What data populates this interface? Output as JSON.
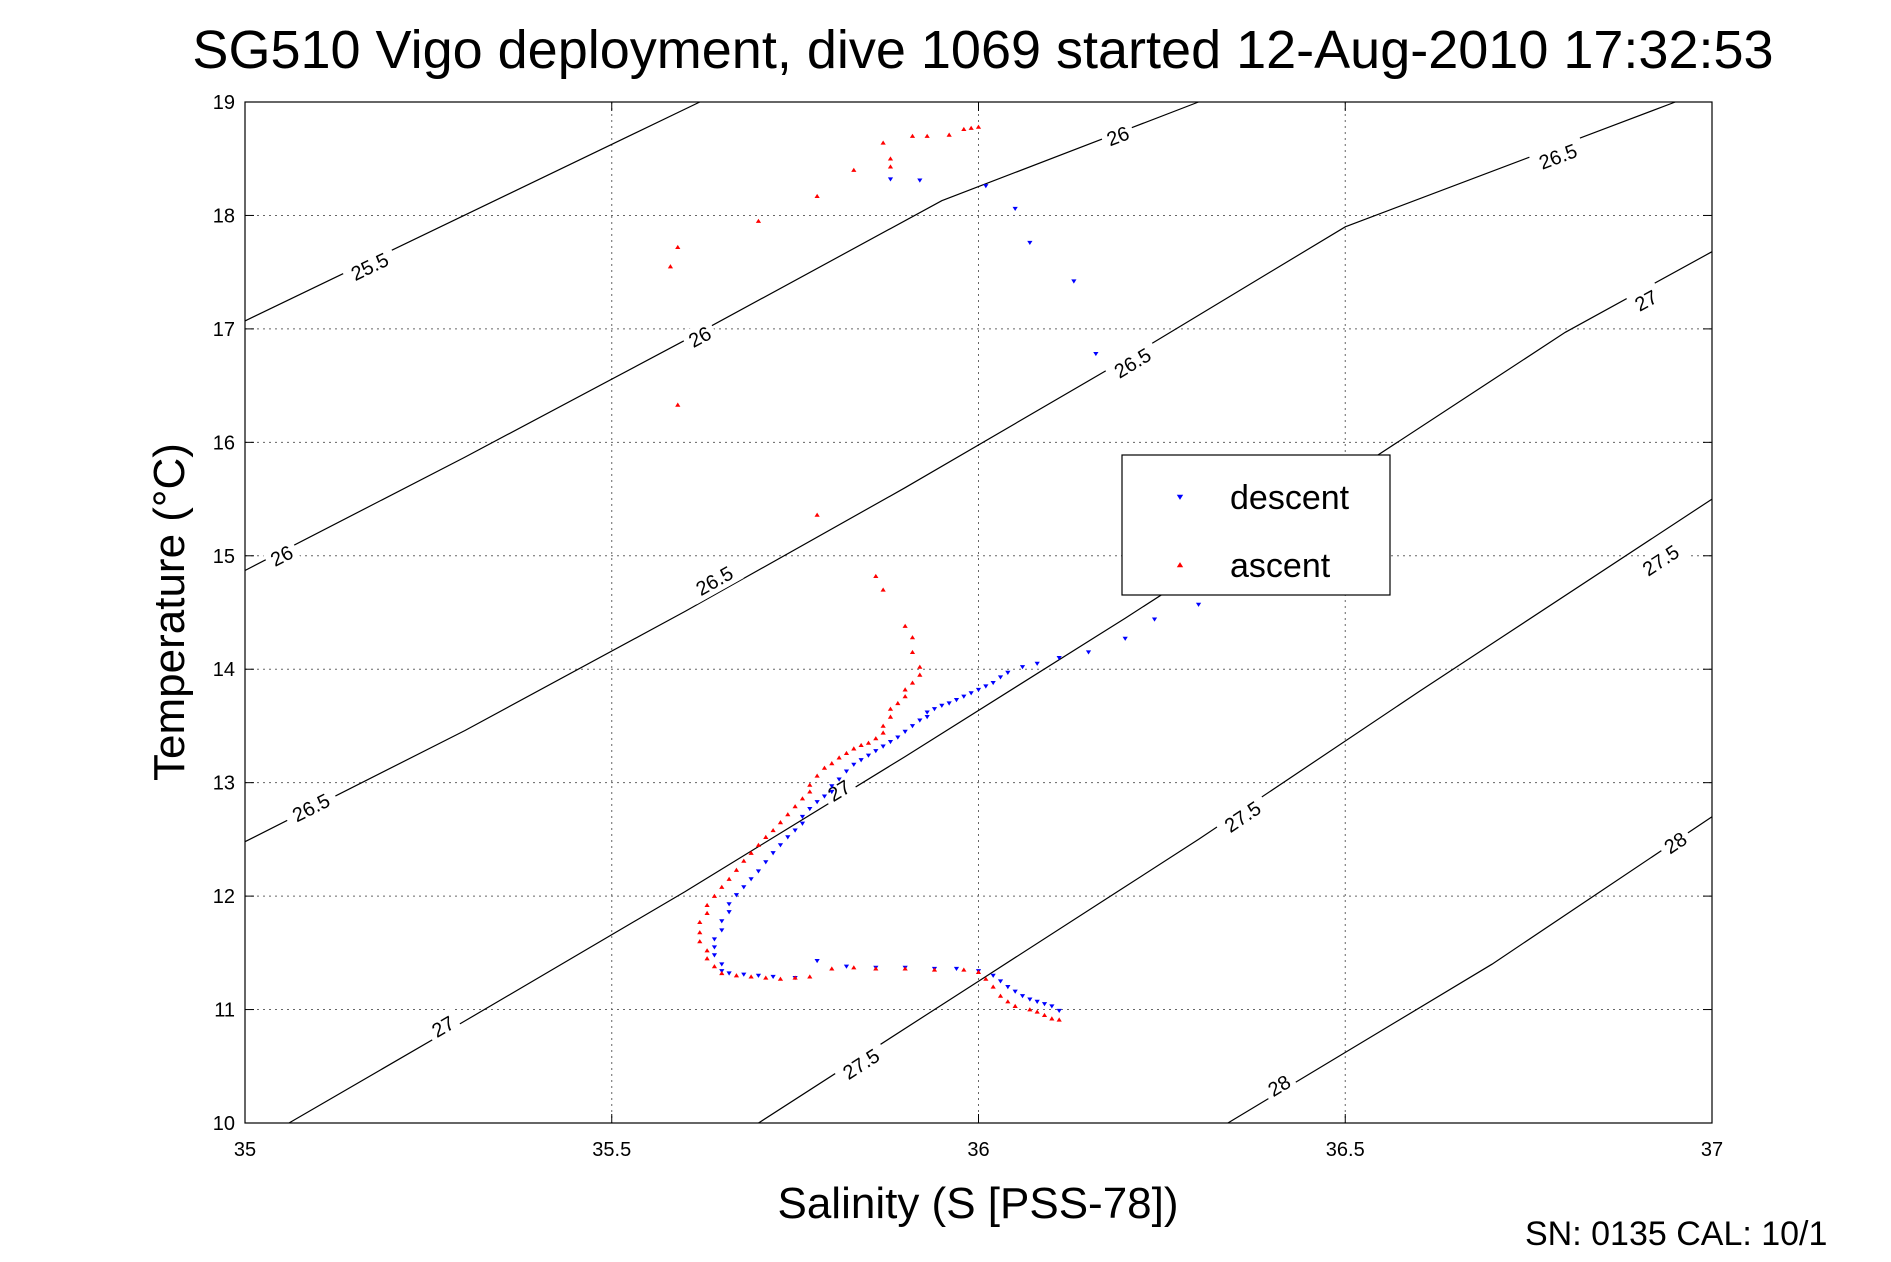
{
  "chart_data": {
    "type": "scatter",
    "title": "SG510 Vigo deployment, dive 1069 started 12-Aug-2010 17:32:53",
    "xlabel": "Salinity (S [PSS-78])",
    "ylabel": "Temperature (°C)",
    "xlim": [
      35,
      37
    ],
    "ylim": [
      10,
      19
    ],
    "x_ticks": [
      "35",
      "35.5",
      "36",
      "36.5",
      "37"
    ],
    "y_ticks": [
      "10",
      "11",
      "12",
      "13",
      "14",
      "15",
      "16",
      "17",
      "18",
      "19"
    ],
    "grid": true,
    "legend_position": "right",
    "footer": "SN: 0135  CAL: 10/1",
    "contours": [
      {
        "sigma": 25.5,
        "points": [
          [
            35,
            17.07
          ],
          [
            35.62,
            19
          ]
        ],
        "labels": [
          [
            35.17,
            17.55,
            "25.5"
          ]
        ]
      },
      {
        "sigma": 26.0,
        "points": [
          [
            35,
            14.87
          ],
          [
            35.3,
            15.87
          ],
          [
            35.6,
            16.9
          ],
          [
            35.95,
            18.13
          ],
          [
            36.3,
            19
          ]
        ],
        "labels": [
          [
            35.05,
            15.0,
            "26"
          ],
          [
            35.62,
            16.93,
            "26"
          ],
          [
            36.19,
            18.7,
            "26"
          ]
        ]
      },
      {
        "sigma": 26.5,
        "points": [
          [
            35,
            12.48
          ],
          [
            35.3,
            13.46
          ],
          [
            35.6,
            14.51
          ],
          [
            35.9,
            15.6
          ],
          [
            36.2,
            16.73
          ],
          [
            36.5,
            17.9
          ],
          [
            36.95,
            19
          ]
        ],
        "labels": [
          [
            35.09,
            12.78,
            "26.5"
          ],
          [
            35.64,
            14.78,
            "26.5"
          ],
          [
            36.21,
            16.7,
            "26.5"
          ],
          [
            36.79,
            18.52,
            "26.5"
          ]
        ]
      },
      {
        "sigma": 27.0,
        "points": [
          [
            35.06,
            10
          ],
          [
            35.3,
            10.9
          ],
          [
            35.6,
            12.04
          ],
          [
            35.9,
            13.23
          ],
          [
            36.2,
            14.45
          ],
          [
            36.5,
            15.7
          ],
          [
            36.8,
            16.97
          ],
          [
            37,
            17.68
          ]
        ],
        "labels": [
          [
            35.27,
            10.85,
            "27"
          ],
          [
            35.81,
            12.93,
            "27"
          ],
          [
            36.91,
            17.25,
            "27"
          ]
        ]
      },
      {
        "sigma": 27.5,
        "points": [
          [
            35.7,
            10
          ],
          [
            36.0,
            11.25
          ],
          [
            36.3,
            12.5
          ],
          [
            36.6,
            13.8
          ],
          [
            37,
            15.5
          ]
        ],
        "labels": [
          [
            35.84,
            10.52,
            "27.5"
          ],
          [
            36.36,
            12.7,
            "27.5"
          ],
          [
            36.93,
            14.96,
            "27.5"
          ]
        ]
      },
      {
        "sigma": 28.0,
        "points": [
          [
            36.34,
            10
          ],
          [
            36.7,
            11.4
          ],
          [
            37,
            12.7
          ]
        ],
        "labels": [
          [
            36.41,
            10.33,
            "28"
          ],
          [
            36.95,
            12.47,
            "28"
          ]
        ]
      }
    ],
    "series": [
      {
        "name": "descent",
        "color": "#0000ff",
        "marker": "triangle-down",
        "points": [
          [
            35.88,
            18.32
          ],
          [
            35.92,
            18.31
          ],
          [
            36.01,
            18.26
          ],
          [
            36.05,
            18.06
          ],
          [
            36.07,
            17.76
          ],
          [
            36.13,
            17.42
          ],
          [
            36.16,
            16.78
          ],
          [
            36.3,
            14.57
          ],
          [
            36.24,
            14.44
          ],
          [
            36.2,
            14.27
          ],
          [
            36.15,
            14.15
          ],
          [
            36.11,
            14.1
          ],
          [
            36.08,
            14.05
          ],
          [
            36.06,
            14.02
          ],
          [
            36.04,
            13.97
          ],
          [
            36.03,
            13.93
          ],
          [
            36.02,
            13.88
          ],
          [
            36.01,
            13.85
          ],
          [
            36.0,
            13.82
          ],
          [
            35.99,
            13.79
          ],
          [
            35.98,
            13.76
          ],
          [
            35.97,
            13.73
          ],
          [
            35.96,
            13.7
          ],
          [
            35.95,
            13.68
          ],
          [
            35.94,
            13.65
          ],
          [
            35.93,
            13.62
          ],
          [
            35.93,
            13.58
          ],
          [
            35.92,
            13.55
          ],
          [
            35.91,
            13.5
          ],
          [
            35.9,
            13.45
          ],
          [
            35.89,
            13.4
          ],
          [
            35.88,
            13.36
          ],
          [
            35.87,
            13.32
          ],
          [
            35.86,
            13.28
          ],
          [
            35.85,
            13.24
          ],
          [
            35.84,
            13.2
          ],
          [
            35.83,
            13.16
          ],
          [
            35.82,
            13.1
          ],
          [
            35.81,
            13.03
          ],
          [
            35.8,
            12.97
          ],
          [
            35.8,
            12.92
          ],
          [
            35.79,
            12.88
          ],
          [
            35.78,
            12.83
          ],
          [
            35.77,
            12.77
          ],
          [
            35.76,
            12.7
          ],
          [
            35.76,
            12.64
          ],
          [
            35.75,
            12.58
          ],
          [
            35.74,
            12.52
          ],
          [
            35.73,
            12.45
          ],
          [
            35.72,
            12.38
          ],
          [
            35.71,
            12.3
          ],
          [
            35.7,
            12.22
          ],
          [
            35.69,
            12.15
          ],
          [
            35.68,
            12.08
          ],
          [
            35.67,
            12.01
          ],
          [
            35.66,
            11.93
          ],
          [
            35.66,
            11.86
          ],
          [
            35.65,
            11.78
          ],
          [
            35.65,
            11.7
          ],
          [
            35.64,
            11.62
          ],
          [
            35.64,
            11.55
          ],
          [
            35.64,
            11.48
          ],
          [
            35.65,
            11.4
          ],
          [
            35.65,
            11.34
          ],
          [
            35.66,
            11.32
          ],
          [
            35.68,
            11.31
          ],
          [
            35.7,
            11.3
          ],
          [
            35.72,
            11.29
          ],
          [
            35.75,
            11.28
          ],
          [
            35.78,
            11.43
          ],
          [
            35.82,
            11.38
          ],
          [
            35.86,
            11.37
          ],
          [
            35.9,
            11.37
          ],
          [
            35.94,
            11.36
          ],
          [
            35.97,
            11.36
          ],
          [
            36.0,
            11.34
          ],
          [
            36.02,
            11.3
          ],
          [
            36.03,
            11.25
          ],
          [
            36.04,
            11.2
          ],
          [
            36.05,
            11.16
          ],
          [
            36.06,
            11.12
          ],
          [
            36.07,
            11.09
          ],
          [
            36.08,
            11.07
          ],
          [
            36.09,
            11.05
          ],
          [
            36.1,
            11.03
          ],
          [
            36.11,
            10.99
          ]
        ]
      },
      {
        "name": "ascent",
        "color": "#ff0000",
        "marker": "triangle-up",
        "points": [
          [
            35.98,
            18.76
          ],
          [
            35.99,
            18.77
          ],
          [
            36.0,
            18.78
          ],
          [
            35.96,
            18.71
          ],
          [
            35.93,
            18.7
          ],
          [
            35.91,
            18.7
          ],
          [
            35.87,
            18.64
          ],
          [
            35.88,
            18.5
          ],
          [
            35.88,
            18.43
          ],
          [
            35.83,
            18.4
          ],
          [
            35.78,
            18.17
          ],
          [
            35.7,
            17.95
          ],
          [
            35.59,
            17.72
          ],
          [
            35.58,
            17.55
          ],
          [
            35.59,
            16.33
          ],
          [
            35.78,
            15.36
          ],
          [
            35.86,
            14.82
          ],
          [
            35.87,
            14.7
          ],
          [
            35.9,
            14.38
          ],
          [
            35.91,
            14.28
          ],
          [
            35.91,
            14.15
          ],
          [
            35.92,
            14.02
          ],
          [
            35.92,
            13.95
          ],
          [
            35.91,
            13.88
          ],
          [
            35.9,
            13.82
          ],
          [
            35.9,
            13.76
          ],
          [
            35.89,
            13.7
          ],
          [
            35.88,
            13.65
          ],
          [
            35.88,
            13.58
          ],
          [
            35.87,
            13.5
          ],
          [
            35.87,
            13.44
          ],
          [
            35.86,
            13.39
          ],
          [
            35.85,
            13.35
          ],
          [
            35.84,
            13.33
          ],
          [
            35.83,
            13.3
          ],
          [
            35.82,
            13.26
          ],
          [
            35.81,
            13.22
          ],
          [
            35.8,
            13.17
          ],
          [
            35.79,
            13.13
          ],
          [
            35.78,
            13.06
          ],
          [
            35.77,
            12.98
          ],
          [
            35.77,
            12.92
          ],
          [
            35.76,
            12.86
          ],
          [
            35.75,
            12.79
          ],
          [
            35.74,
            12.72
          ],
          [
            35.73,
            12.65
          ],
          [
            35.72,
            12.58
          ],
          [
            35.71,
            12.52
          ],
          [
            35.7,
            12.45
          ],
          [
            35.69,
            12.38
          ],
          [
            35.68,
            12.31
          ],
          [
            35.67,
            12.23
          ],
          [
            35.66,
            12.15
          ],
          [
            35.65,
            12.08
          ],
          [
            35.64,
            12.0
          ],
          [
            35.63,
            11.92
          ],
          [
            35.63,
            11.85
          ],
          [
            35.62,
            11.77
          ],
          [
            35.62,
            11.68
          ],
          [
            35.62,
            11.6
          ],
          [
            35.63,
            11.52
          ],
          [
            35.63,
            11.45
          ],
          [
            35.64,
            11.38
          ],
          [
            35.65,
            11.32
          ],
          [
            35.67,
            11.3
          ],
          [
            35.69,
            11.29
          ],
          [
            35.71,
            11.28
          ],
          [
            35.73,
            11.27
          ],
          [
            35.75,
            11.28
          ],
          [
            35.77,
            11.29
          ],
          [
            35.8,
            11.36
          ],
          [
            35.83,
            11.37
          ],
          [
            35.86,
            11.36
          ],
          [
            35.9,
            11.36
          ],
          [
            35.94,
            11.35
          ],
          [
            35.98,
            11.35
          ],
          [
            36.0,
            11.33
          ],
          [
            36.01,
            11.27
          ],
          [
            36.02,
            11.2
          ],
          [
            36.03,
            11.12
          ],
          [
            36.04,
            11.07
          ],
          [
            36.05,
            11.03
          ],
          [
            36.07,
            11.0
          ],
          [
            36.08,
            10.98
          ],
          [
            36.09,
            10.95
          ],
          [
            36.1,
            10.92
          ],
          [
            36.11,
            10.91
          ]
        ]
      }
    ]
  }
}
